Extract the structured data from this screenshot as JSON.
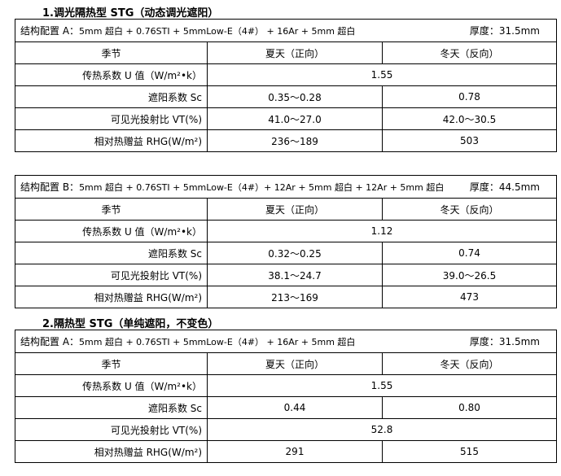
{
  "sections": [
    {
      "title": "1.调光隔热型 STG（动态调光遮阳）"
    },
    {
      "title": "2.隔热型 STG（单纯遮阳，不变色）"
    }
  ],
  "tables": [
    {
      "config_label": "结构配置 A：",
      "config": "5mm 超白 + 0.76STI + 5mmLow-E（4#） + 16Ar + 5mm 超白",
      "thickness": "厚度：31.5mm",
      "headers": [
        "季节",
        "夏天（正向）",
        "冬天（反向）"
      ],
      "u_label": "传热系数 U 值（W/m²•k）",
      "u": "1.55",
      "sc_label": "遮阳系数 Sc",
      "sc": [
        "0.35～0.28",
        "0.78"
      ],
      "vt_label": "可见光投射比 VT(%)",
      "vt": [
        "41.0～27.0",
        "42.0～30.5"
      ],
      "rhg_label": "相对热赠益 RHG(W/m²)",
      "rhg": [
        "236～189",
        "503"
      ]
    },
    {
      "config_label": "结构配置 B：",
      "config": "5mm 超白 + 0.76STI + 5mmLow-E（4#）+ 12Ar + 5mm 超白 + 12Ar + 5mm 超白",
      "thickness": "厚度：44.5mm",
      "headers": [
        "季节",
        "夏天（正向）",
        "冬天（反向）"
      ],
      "u_label": "传热系数 U 值（W/m²•k）",
      "u": "1.12",
      "sc_label": "遮阳系数 Sc",
      "sc": [
        "0.32～0.25",
        "0.74"
      ],
      "vt_label": "可见光投射比 VT(%)",
      "vt": [
        "38.1～24.7",
        "39.0～26.5"
      ],
      "rhg_label": "相对热赠益 RHG(W/m²)",
      "rhg": [
        "213～169",
        "473"
      ]
    },
    {
      "config_label": "结构配置 A：",
      "config": "5mm 超白 + 0.76STI + 5mmLow-E（4#） + 16Ar + 5mm 超白",
      "thickness": "厚度：31.5mm",
      "headers": [
        "季节",
        "夏天（正向）",
        "冬天（反向）"
      ],
      "u_label": "传热系数 U 值（W/m²•k）",
      "u": "1.55",
      "sc_label": "遮阳系数 Sc",
      "sc": [
        "0.44",
        "0.80"
      ],
      "vt_label": "可见光投射比 VT(%)",
      "vt_merged": "52.8",
      "rhg_label": "相对热赠益 RHG(W/m²)",
      "rhg": [
        "291",
        "515"
      ]
    }
  ]
}
